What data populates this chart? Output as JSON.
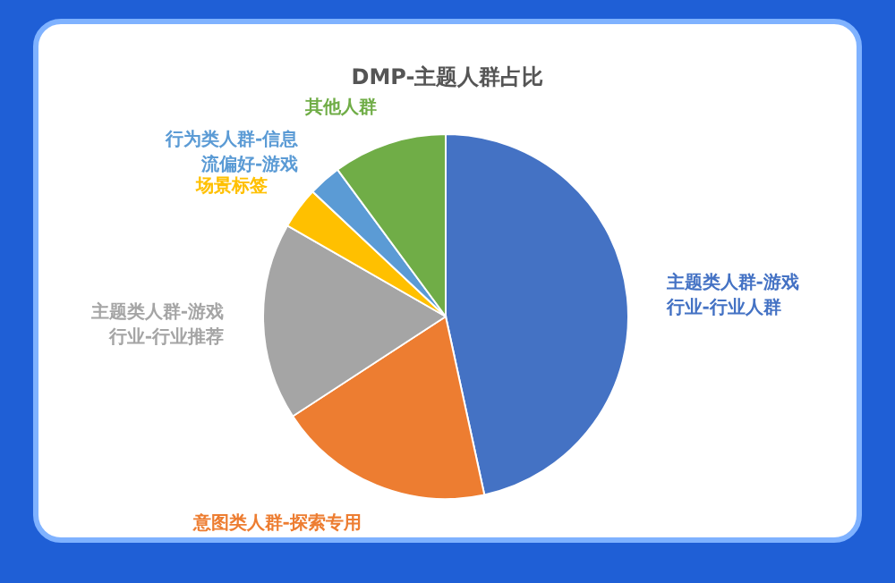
{
  "chart_data": {
    "type": "pie",
    "title": "DMP-主题人群占比",
    "categories": [
      "主题类人群-游戏行业-行业人群",
      "意图类人群-探索专用",
      "主题类人群-游戏行业-行业推荐",
      "场景标签",
      "行为类人群-信息流偏好-游戏",
      "其他人群"
    ],
    "values": [
      46.6,
      19.2,
      17.5,
      3.7,
      2.9,
      10.1
    ],
    "colors": [
      "#4472c4",
      "#ed7d31",
      "#a5a5a5",
      "#ffc000",
      "#5b9bd5",
      "#70ad47"
    ]
  }
}
